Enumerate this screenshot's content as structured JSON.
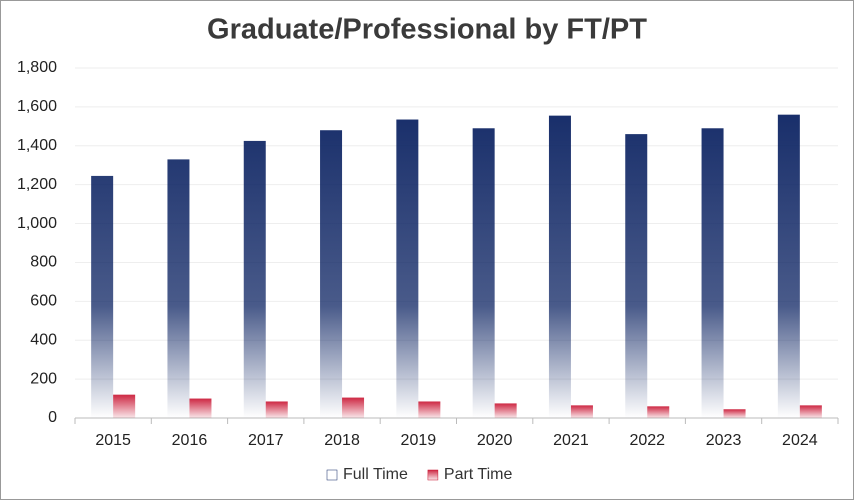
{
  "chart_data": {
    "type": "bar",
    "title": "Graduate/Professional by FT/PT",
    "categories": [
      "2015",
      "2016",
      "2017",
      "2018",
      "2019",
      "2020",
      "2021",
      "2022",
      "2023",
      "2024"
    ],
    "series": [
      {
        "name": "Full Time",
        "color": "#0d2463",
        "values": [
          1245,
          1330,
          1425,
          1480,
          1535,
          1490,
          1555,
          1460,
          1490,
          1560
        ]
      },
      {
        "name": "Part Time",
        "color": "#c8102e",
        "values": [
          120,
          100,
          85,
          105,
          85,
          75,
          65,
          60,
          45,
          65
        ]
      }
    ],
    "ylim": [
      0,
      1800
    ],
    "yticks": [
      0,
      200,
      400,
      600,
      800,
      {
        "value": 1000,
        "label": "1,000"
      },
      {
        "value": 1200,
        "label": "1,200"
      },
      {
        "value": 1400,
        "label": "1,400"
      },
      {
        "value": 1600,
        "label": "1,600"
      },
      {
        "value": 1800,
        "label": "1,800"
      }
    ],
    "grid": true,
    "legend": "bottom"
  }
}
